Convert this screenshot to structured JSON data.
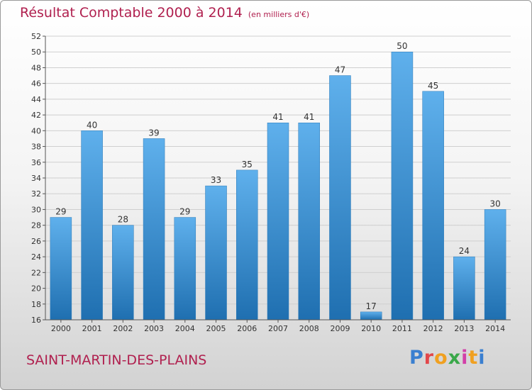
{
  "title": "Résultat Comptable 2000 à 2014",
  "unit_note": "(en milliers d'€)",
  "commune": "SAINT-MARTIN-DES-PLAINS",
  "logo": {
    "text": "Proxiti",
    "letter_colors": [
      "#3a7fd0",
      "#e2474a",
      "#f0a020",
      "#3aa84a",
      "#d23fa8",
      "#f0a020",
      "#3a7fd0"
    ]
  },
  "colors": {
    "bar_top": "#5fb0ec",
    "bar_bottom": "#1f6fb0",
    "accent": "#b0204f",
    "grid": "#cfcfcf"
  },
  "chart_data": {
    "type": "bar",
    "categories": [
      "2000",
      "2001",
      "2002",
      "2003",
      "2004",
      "2005",
      "2006",
      "2007",
      "2008",
      "2009",
      "2010",
      "2011",
      "2012",
      "2013",
      "2014"
    ],
    "values": [
      29,
      40,
      28,
      39,
      29,
      33,
      35,
      41,
      41,
      47,
      17,
      50,
      45,
      24,
      30
    ],
    "ylim": [
      16,
      52
    ],
    "yticks": [
      16,
      18,
      20,
      22,
      24,
      26,
      28,
      30,
      32,
      34,
      36,
      38,
      40,
      42,
      44,
      46,
      48,
      50,
      52
    ],
    "grid": true,
    "data_labels": true
  }
}
